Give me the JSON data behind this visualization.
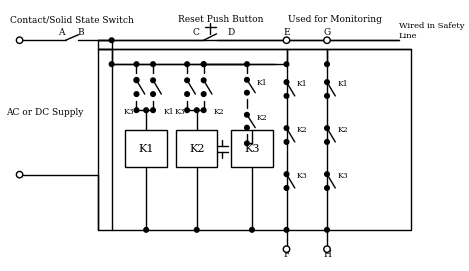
{
  "bg_color": "#ffffff",
  "line_color": "#000000",
  "top_labels": {
    "contact_switch": "Contact/Solid State Switch",
    "reset_button": "Reset Push Button",
    "monitoring": "Used for Monitoring",
    "wired_safety": "Wired in Safety\nLine",
    "ac_dc": "AC or DC Supply"
  },
  "terminals": [
    "A",
    "B",
    "C",
    "D",
    "E",
    "F",
    "G",
    "H"
  ],
  "relays": [
    "K1",
    "K2",
    "K3"
  ]
}
